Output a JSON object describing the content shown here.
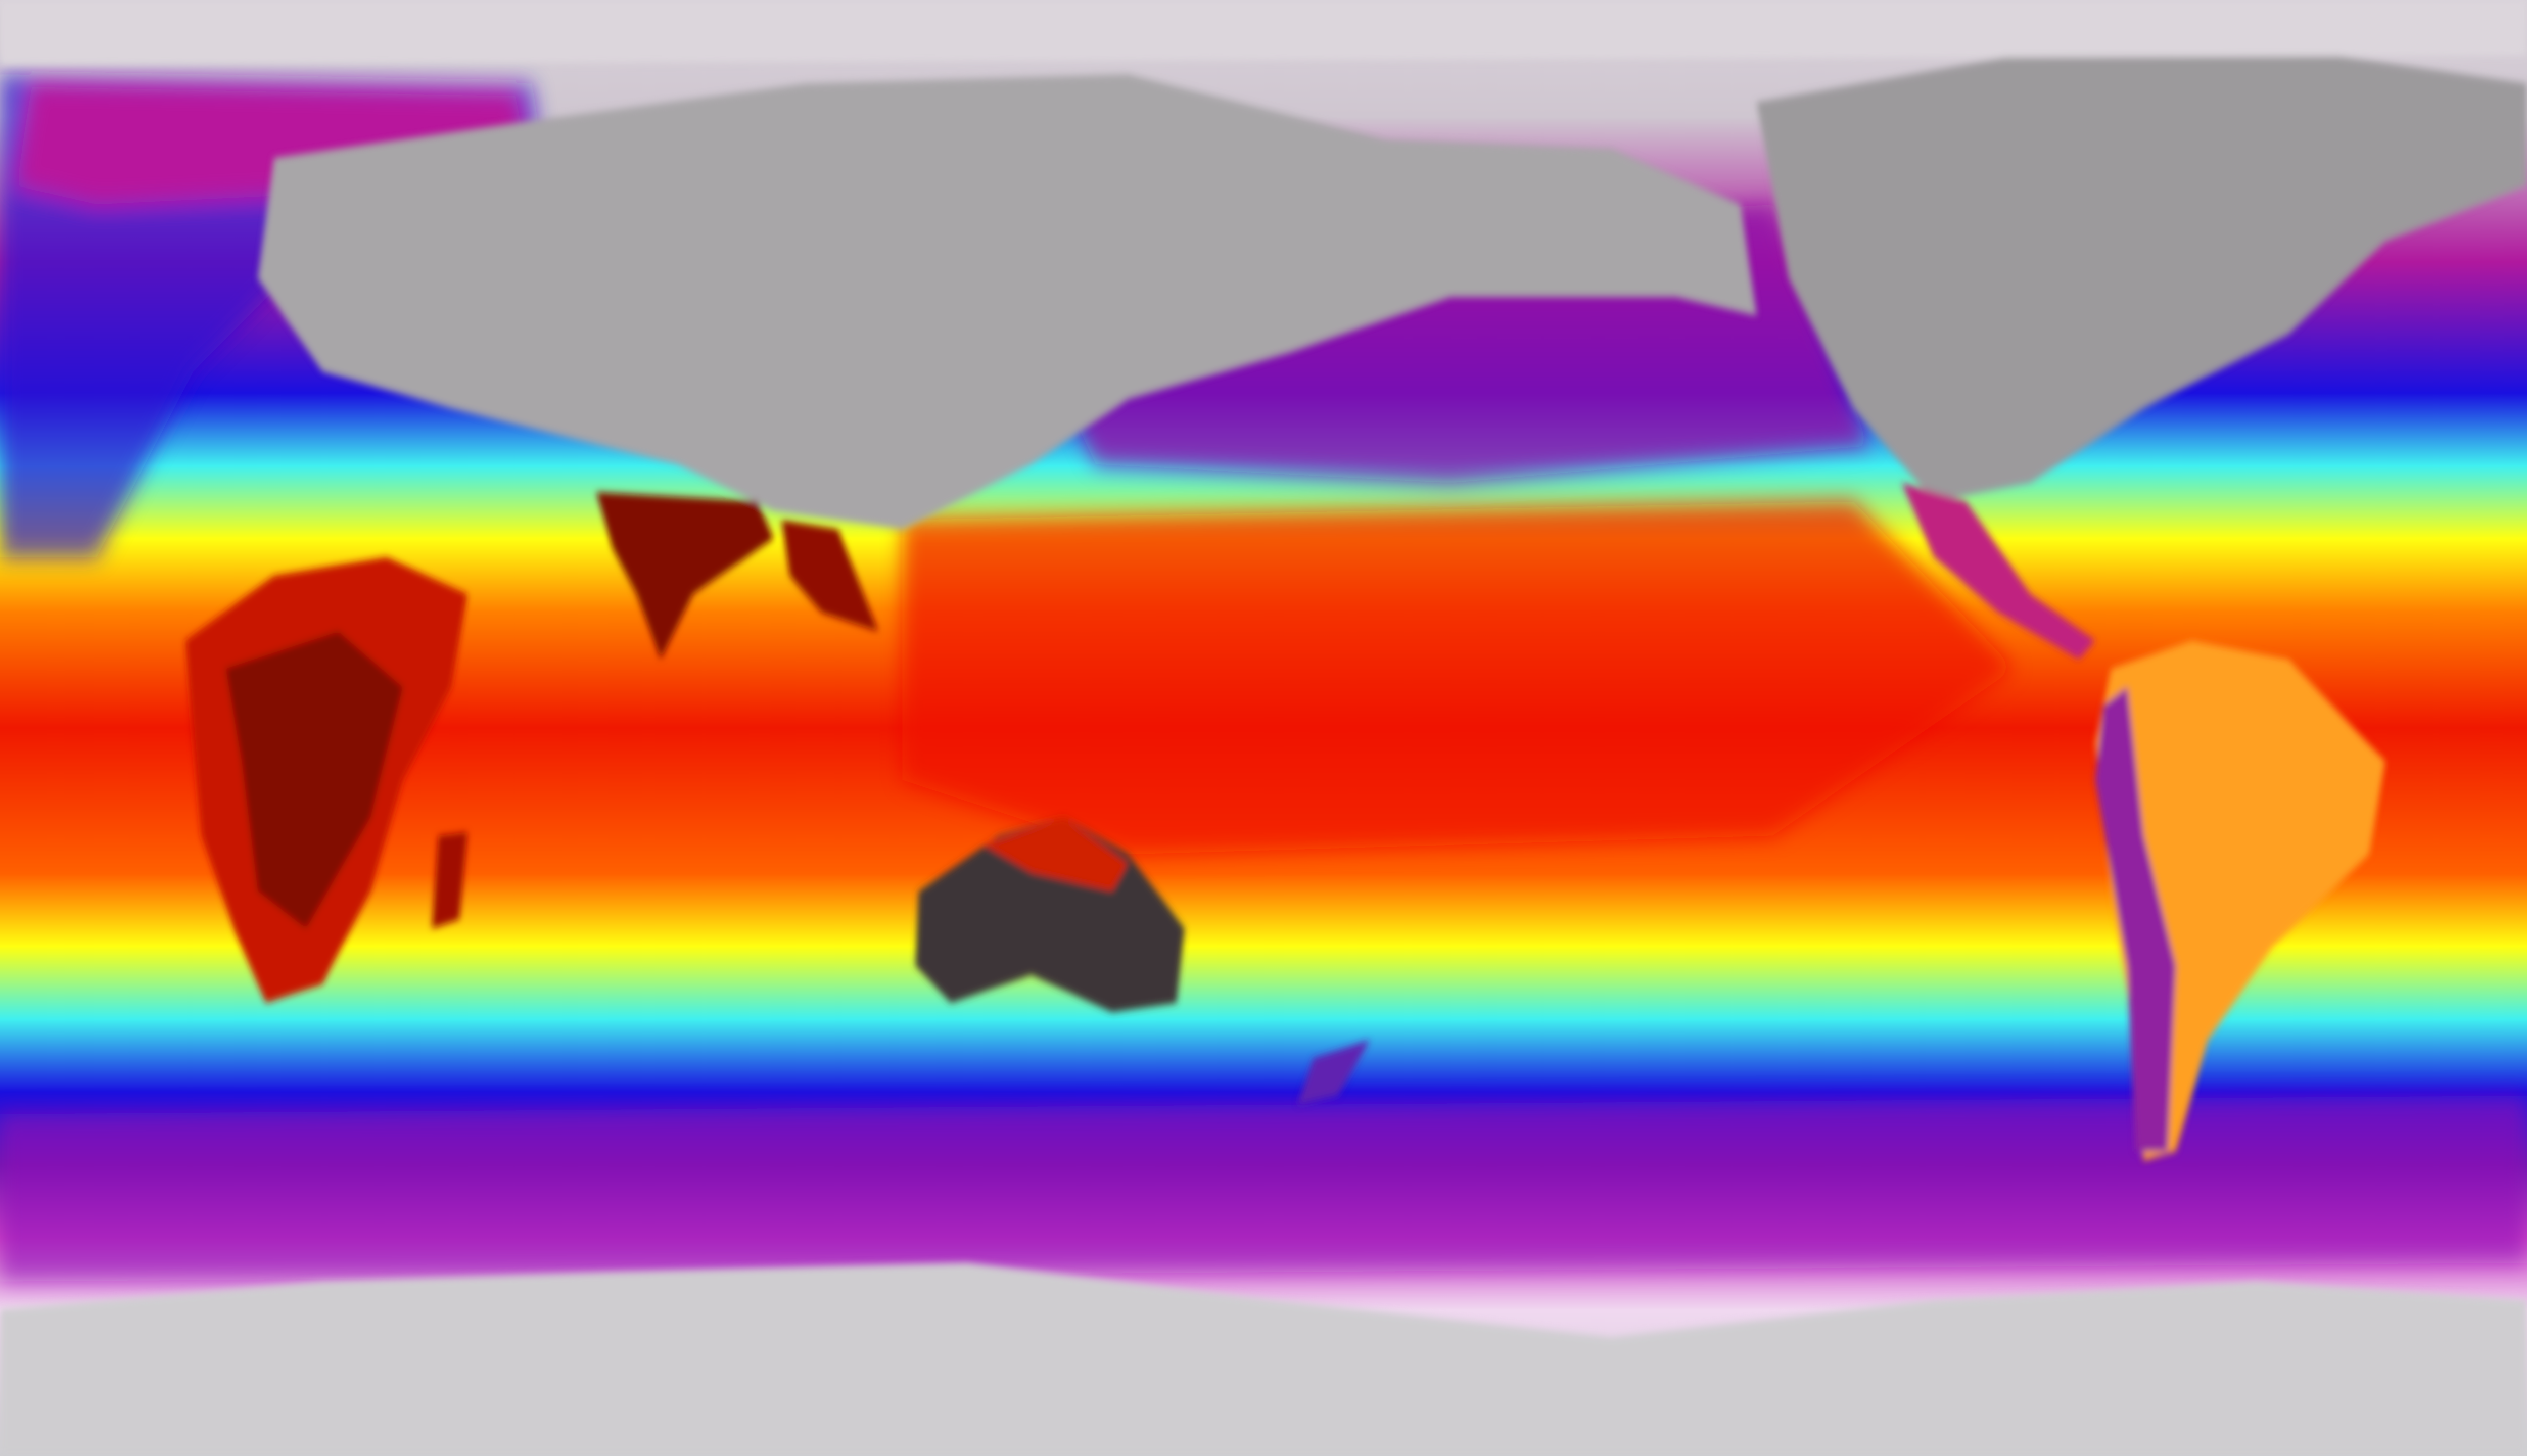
{
  "map": {
    "projection": "equirectangular",
    "colors": {
      "polar": "#d9d2da",
      "cold_magenta": "#b0189e",
      "purple": "#5a0ca8",
      "blue": "#1a10e0",
      "cyan": "#40f0f0",
      "yellow": "#ffff10",
      "orange": "#ff8000",
      "red": "#f01800",
      "dark_red": "#701000",
      "land_gray": "#9a9a9a",
      "desert_dark": "#3a3436"
    }
  }
}
